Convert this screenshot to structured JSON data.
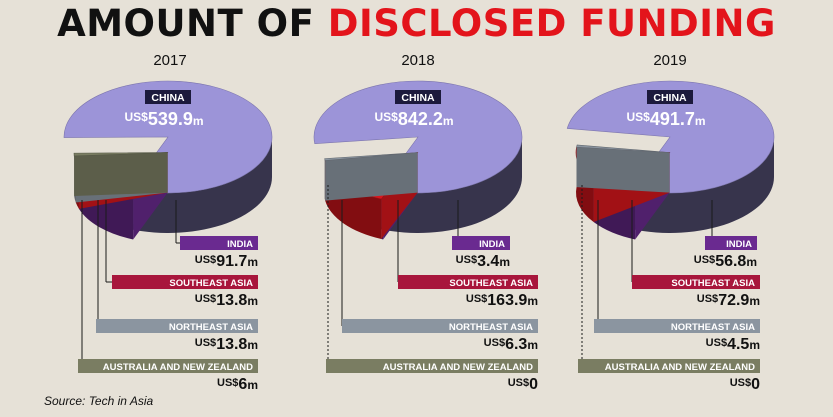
{
  "title": {
    "part1": "AMOUNT OF",
    "part2": "DISCLOSED FUNDING"
  },
  "source": "Source: Tech in Asia",
  "colors": {
    "china": "#9c94d8",
    "india": "#6a2a90",
    "southeast_asia": "#d8161c",
    "northeast_asia": "#8b95a0",
    "anz": "#7a7d62",
    "label_dark": "#1c1a3c",
    "title_red": "#e3141b"
  },
  "chart_data": [
    {
      "type": "pie",
      "year": "2017",
      "unit_prefix": "US$",
      "unit_suffix": "m",
      "categories": [
        "CHINA",
        "INDIA",
        "SOUTHEAST ASIA",
        "NORTHEAST ASIA",
        "AUSTRALIA AND NEW ZEALAND"
      ],
      "values": [
        539.9,
        91.7,
        13.8,
        13.8,
        6
      ],
      "value_labels": [
        "539.9",
        "91.7",
        "13.8",
        "13.8",
        "6"
      ]
    },
    {
      "type": "pie",
      "year": "2018",
      "unit_prefix": "US$",
      "unit_suffix": "m",
      "categories": [
        "CHINA",
        "INDIA",
        "SOUTHEAST ASIA",
        "NORTHEAST ASIA",
        "AUSTRALIA AND NEW ZEALAND"
      ],
      "values": [
        842.2,
        3.4,
        163.9,
        6.3,
        0
      ],
      "value_labels": [
        "842.2",
        "3.4",
        "163.9",
        "6.3",
        "0"
      ]
    },
    {
      "type": "pie",
      "year": "2019",
      "unit_prefix": "US$",
      "unit_suffix": "m",
      "categories": [
        "CHINA",
        "INDIA",
        "SOUTHEAST ASIA",
        "NORTHEAST ASIA",
        "AUSTRALIA AND NEW ZEALAND"
      ],
      "values": [
        491.7,
        56.8,
        72.9,
        4.5,
        0
      ],
      "value_labels": [
        "491.7",
        "56.8",
        "72.9",
        "4.5",
        "0"
      ]
    }
  ]
}
